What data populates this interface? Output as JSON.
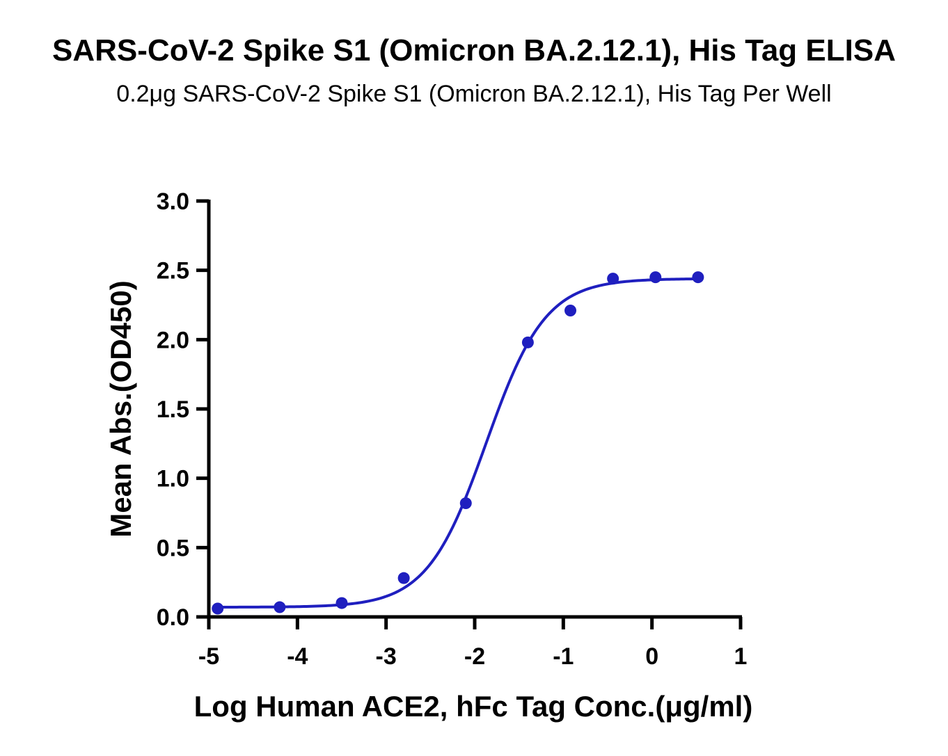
{
  "chart_data": {
    "type": "scatter",
    "title": "SARS-CoV-2 Spike S1 (Omicron BA.2.12.1), His Tag ELISA",
    "subtitle": "0.2μg SARS-CoV-2 Spike S1 (Omicron BA.2.12.1), His Tag Per Well",
    "xlabel": "Log Human ACE2, hFc Tag Conc.(μg/ml)",
    "ylabel": "Mean Abs.(OD450)",
    "xlim": [
      -5,
      1
    ],
    "ylim": [
      0,
      3.0
    ],
    "x_ticks": [
      "-5",
      "-4",
      "-3",
      "-2",
      "-1",
      "0",
      "1"
    ],
    "y_ticks": [
      "0.0",
      "0.5",
      "1.0",
      "1.5",
      "2.0",
      "2.5",
      "3.0"
    ],
    "grid": false,
    "legend": "none",
    "color": "#1f1fbf",
    "series": [
      {
        "points": [
          {
            "x": -4.9,
            "y": 0.06
          },
          {
            "x": -4.2,
            "y": 0.07
          },
          {
            "x": -3.5,
            "y": 0.1
          },
          {
            "x": -2.8,
            "y": 0.28
          },
          {
            "x": -2.1,
            "y": 0.82
          },
          {
            "x": -1.4,
            "y": 1.98
          },
          {
            "x": -0.92,
            "y": 2.21
          },
          {
            "x": -0.44,
            "y": 2.44
          },
          {
            "x": 0.04,
            "y": 2.45
          },
          {
            "x": 0.52,
            "y": 2.45
          }
        ],
        "fit": {
          "model": "4PL",
          "bottom": 0.07,
          "top": 2.44,
          "logEC50": -1.87,
          "hill": 1.3,
          "x_range": [
            -4.9,
            0.52
          ]
        }
      }
    ]
  }
}
